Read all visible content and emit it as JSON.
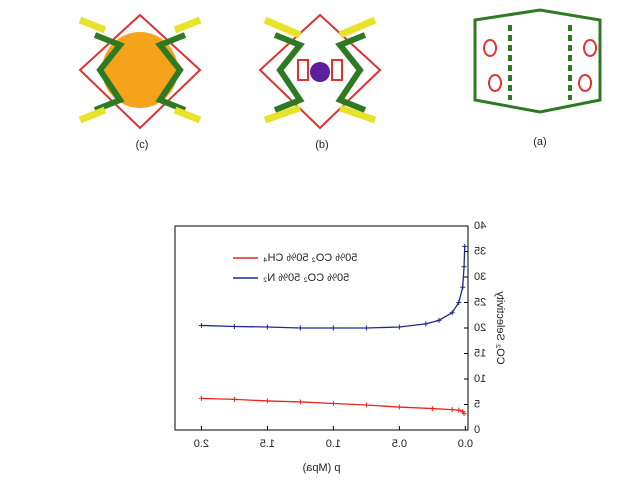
{
  "panels": [
    {
      "label": "(c)"
    },
    {
      "label": "(b)"
    },
    {
      "label": "(a)"
    }
  ],
  "chart_data": {
    "type": "line",
    "xlabel": "p (Mpa)",
    "ylabel": "CO₂ Selectivity",
    "xlim": [
      -0.02,
      2.2
    ],
    "ylim": [
      0,
      40
    ],
    "xticks": [
      {
        "value": 0,
        "label": "0.0"
      },
      {
        "value": 0.5,
        "label": "0.5"
      },
      {
        "value": 1,
        "label": "1.0"
      },
      {
        "value": 1.5,
        "label": "1.5"
      },
      {
        "value": 2,
        "label": "2.0"
      }
    ],
    "yticks": [
      0,
      5,
      10,
      15,
      20,
      25,
      30,
      35,
      40
    ],
    "mirrored": true,
    "series": [
      {
        "name": "50% CO₂ 50% CH₄",
        "color": "#e8261e",
        "x": [
          0.01,
          0.02,
          0.05,
          0.1,
          0.25,
          0.5,
          0.75,
          1.0,
          1.25,
          1.5,
          1.75,
          2.0
        ],
        "values": [
          3.2,
          3.6,
          3.9,
          4.0,
          4.2,
          4.5,
          4.9,
          5.2,
          5.5,
          5.7,
          6.0,
          6.2
        ]
      },
      {
        "name": "50% CO₂ 50% N₂",
        "color": "#1f2a8c",
        "x": [
          0.005,
          0.01,
          0.02,
          0.05,
          0.1,
          0.2,
          0.3,
          0.5,
          0.75,
          1.0,
          1.25,
          1.5,
          1.75,
          2.0
        ],
        "values": [
          36,
          32,
          28,
          25,
          23,
          21.5,
          20.8,
          20.2,
          20.0,
          20.0,
          20.0,
          20.2,
          20.3,
          20.5
        ]
      }
    ]
  }
}
